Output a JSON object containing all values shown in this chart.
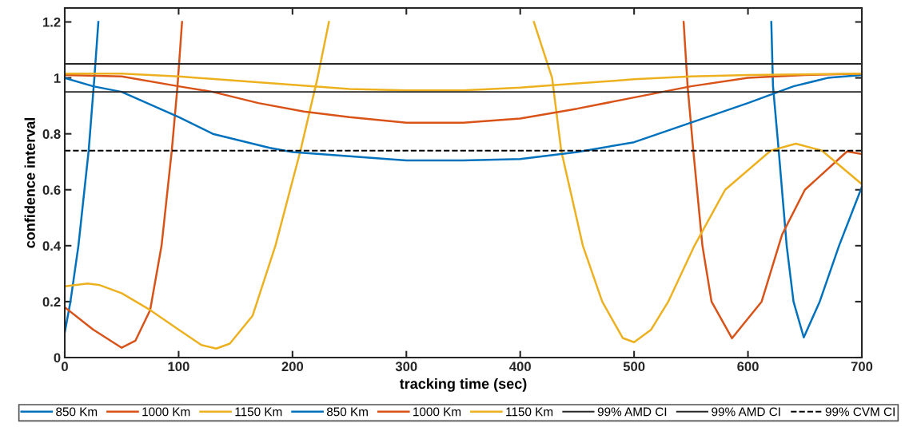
{
  "chart_data": {
    "type": "line",
    "xlabel": "tracking time (sec)",
    "ylabel": "confidence interval",
    "xlim": [
      0,
      700
    ],
    "ylim": [
      0,
      1.25
    ],
    "xticks": [
      0,
      100,
      200,
      300,
      400,
      500,
      600,
      700
    ],
    "yticks": [
      0,
      0.2,
      0.4,
      0.6,
      0.8,
      1,
      1.2
    ],
    "grid": false,
    "legend": "bottom",
    "marker": "none",
    "line_style": "solid",
    "series": [
      {
        "name": "850 Km",
        "color": "#0072bd",
        "x": [
          0,
          5,
          12,
          21,
          26,
          29.5,
          31,
          619,
          620.5,
          622,
          627,
          634,
          640,
          649,
          663,
          680,
          700
        ],
        "values": [
          0.09,
          0.2,
          0.4,
          0.74,
          1.0,
          1.2,
          null,
          null,
          1.2,
          0.97,
          0.74,
          0.4,
          0.2,
          0.072,
          0.2,
          0.4,
          0.61
        ]
      },
      {
        "name": "1000 Km",
        "color": "#d95319",
        "x": [
          0,
          25,
          50,
          62,
          75,
          85,
          94,
          99,
          103,
          105,
          542,
          543.5,
          547,
          552,
          560,
          568,
          586,
          612,
          630,
          650,
          687,
          700
        ],
        "values": [
          0.18,
          0.1,
          0.035,
          0.06,
          0.17,
          0.4,
          0.74,
          0.97,
          1.2,
          null,
          null,
          1.2,
          0.97,
          0.74,
          0.4,
          0.2,
          0.069,
          0.2,
          0.44,
          0.6,
          0.737,
          0.728
        ]
      },
      {
        "name": "1150 Km",
        "color": "#edb120",
        "x": [
          0,
          20,
          30,
          50,
          75,
          100,
          120,
          133,
          145,
          165,
          185,
          207,
          222,
          232,
          234,
          409,
          412,
          428,
          436,
          455,
          472,
          490,
          500,
          515,
          530,
          553,
          580,
          620,
          642,
          665,
          700
        ],
        "values": [
          0.255,
          0.265,
          0.26,
          0.23,
          0.17,
          0.1,
          0.045,
          0.032,
          0.05,
          0.15,
          0.4,
          0.74,
          1.0,
          1.2,
          null,
          null,
          1.2,
          1.0,
          0.74,
          0.4,
          0.2,
          0.07,
          0.055,
          0.1,
          0.2,
          0.4,
          0.6,
          0.74,
          0.765,
          0.74,
          0.62
        ]
      },
      {
        "name": "850 Km",
        "color": "#0072bd",
        "x": [
          0,
          25,
          50,
          100,
          130,
          180,
          200,
          250,
          300,
          350,
          400,
          450,
          500,
          550,
          600,
          640,
          670,
          700
        ],
        "values": [
          1.0,
          0.97,
          0.95,
          0.86,
          0.8,
          0.75,
          0.735,
          0.72,
          0.705,
          0.705,
          0.71,
          0.735,
          0.77,
          0.84,
          0.91,
          0.97,
          1.0,
          1.01
        ]
      },
      {
        "name": "1000 Km",
        "color": "#d95319",
        "x": [
          0,
          50,
          100,
          130,
          170,
          210,
          250,
          300,
          350,
          400,
          450,
          500,
          550,
          600,
          650,
          700
        ],
        "values": [
          1.01,
          1.005,
          0.97,
          0.95,
          0.91,
          0.88,
          0.86,
          0.84,
          0.84,
          0.855,
          0.89,
          0.93,
          0.97,
          1.0,
          1.01,
          1.015
        ]
      },
      {
        "name": "1150 Km",
        "color": "#edb120",
        "x": [
          0,
          50,
          100,
          150,
          200,
          250,
          300,
          350,
          400,
          450,
          500,
          550,
          600,
          700
        ],
        "values": [
          1.015,
          1.015,
          1.005,
          0.99,
          0.975,
          0.96,
          0.955,
          0.955,
          0.965,
          0.98,
          0.995,
          1.005,
          1.01,
          1.015
        ]
      }
    ],
    "ref_lines": [
      {
        "axis": "y",
        "value": 1.05,
        "label": "99% AMD CI",
        "color": "#262626",
        "line_style": "solid"
      },
      {
        "axis": "y",
        "value": 0.95,
        "label": "99% AMD CI",
        "color": "#262626",
        "line_style": "solid"
      },
      {
        "axis": "y",
        "value": 0.74,
        "label": "99% CVM CI",
        "color": "#000000",
        "line_style": "dashed"
      }
    ]
  }
}
